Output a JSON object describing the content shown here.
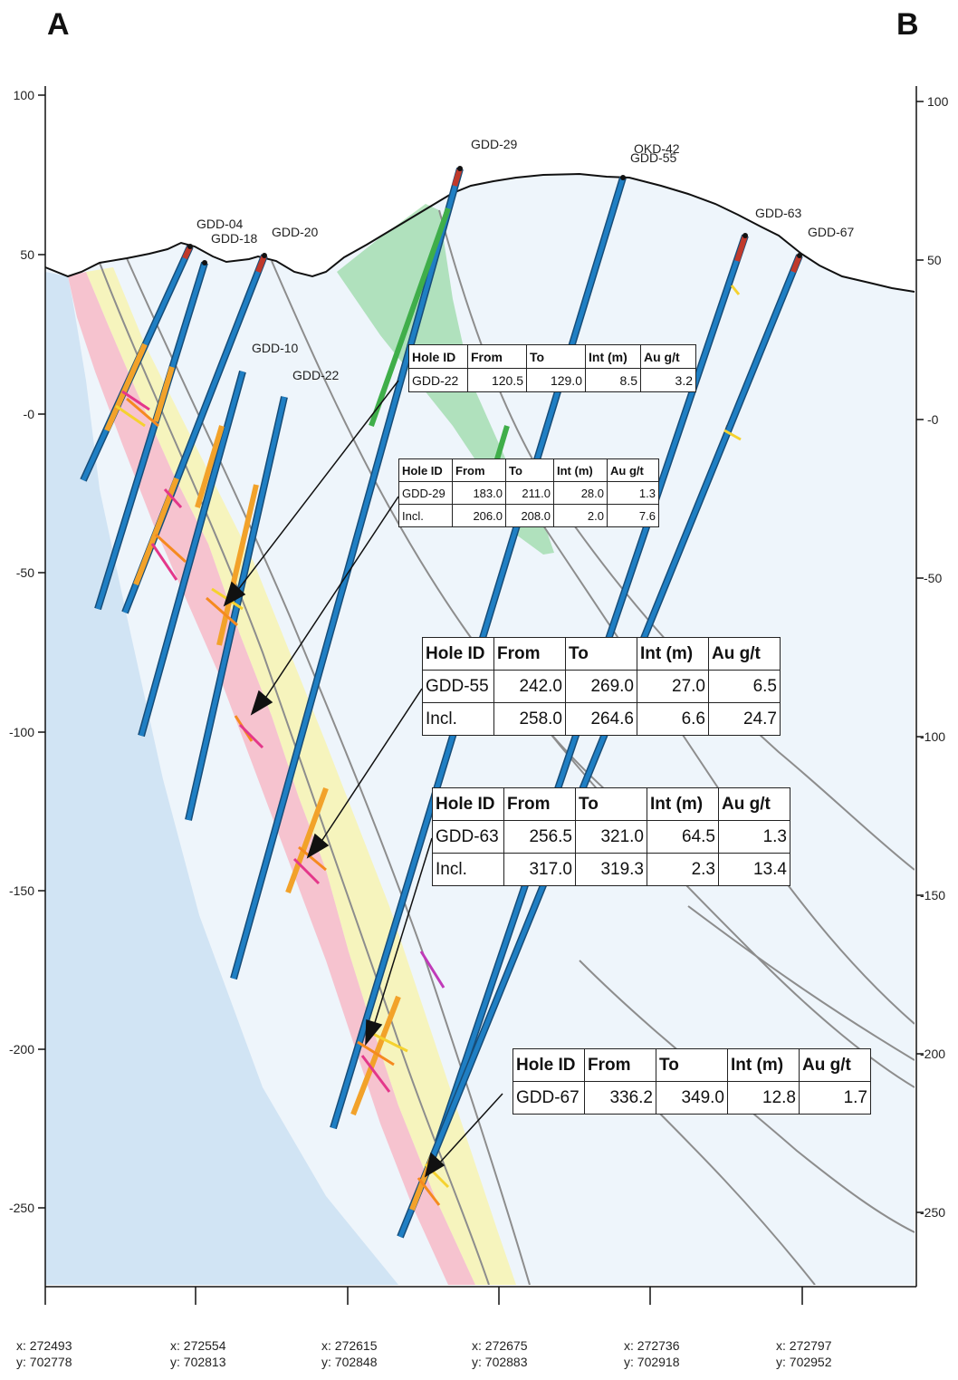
{
  "section": {
    "start_label": "A",
    "end_label": "B"
  },
  "elevation_axis": {
    "ticks_left": [
      "100",
      "50",
      "-0",
      "-50",
      "-100",
      "-150",
      "-200",
      "-250"
    ],
    "ticks_right": [
      "100",
      "50",
      "-0",
      "-50",
      "-100",
      "-150",
      "-200",
      "-250"
    ]
  },
  "easting_axis": [
    {
      "x": "x: 272493",
      "y": "y: 702778"
    },
    {
      "x": "x: 272554",
      "y": "y: 702813"
    },
    {
      "x": "x: 272615",
      "y": "y: 702848"
    },
    {
      "x": "x: 272675",
      "y": "y: 702883"
    },
    {
      "x": "x: 272736",
      "y": "y: 702918"
    },
    {
      "x": "x: 272797",
      "y": "y: 702952"
    }
  ],
  "drillholes": [
    {
      "id": "GDD-04"
    },
    {
      "id": "GDD-18"
    },
    {
      "id": "GDD-20"
    },
    {
      "id": "GDD-10"
    },
    {
      "id": "GDD-22"
    },
    {
      "id": "GDD-29"
    },
    {
      "id": "OKD-42"
    },
    {
      "id": "GDD-55"
    },
    {
      "id": "GDD-63"
    },
    {
      "id": "GDD-67"
    }
  ],
  "intercept_tables": {
    "header": [
      "Hole ID",
      "From",
      "To",
      "Int (m)",
      "Au g/t"
    ],
    "gdd22": [
      [
        "GDD-22",
        "120.5",
        "129.0",
        "8.5",
        "3.2"
      ]
    ],
    "gdd29": [
      [
        "GDD-29",
        "183.0",
        "211.0",
        "28.0",
        "1.3"
      ],
      [
        "Incl.",
        "206.0",
        "208.0",
        "2.0",
        "7.6"
      ]
    ],
    "gdd55": [
      [
        "GDD-55",
        "242.0",
        "269.0",
        "27.0",
        "6.5"
      ],
      [
        "Incl.",
        "258.0",
        "264.6",
        "6.6",
        "24.7"
      ]
    ],
    "gdd63": [
      [
        "GDD-63",
        "256.5",
        "321.0",
        "64.5",
        "1.3"
      ],
      [
        "Incl.",
        "317.0",
        "319.3",
        "2.3",
        "13.4"
      ]
    ],
    "gdd67": [
      [
        "GDD-67",
        "336.2",
        "349.0",
        "12.8",
        "1.7"
      ]
    ]
  },
  "colors": {
    "hole_blue": "#1f7fc4",
    "mineralized_orange": "#f2a22a",
    "green_unit": "#3fae4a",
    "red_collar": "#c0392b",
    "pink_zone": "#f7a3b8",
    "yellow_zone": "#f5f08a",
    "blue_wash": "#cfe3f3"
  }
}
